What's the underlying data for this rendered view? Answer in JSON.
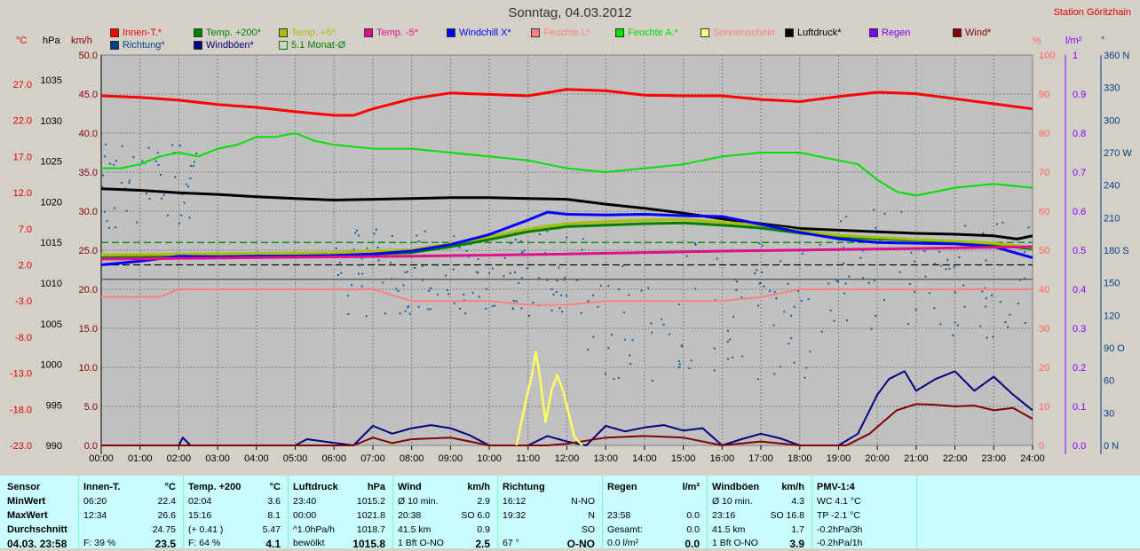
{
  "title": "Sonntag, 04.03.2012",
  "station": "Station Göritzhain",
  "legend_row1": [
    {
      "label": "Innen-T.*",
      "color": "#ff0000"
    },
    {
      "label": "Temp. +200*",
      "color": "#008000"
    },
    {
      "label": "Temp. +5*",
      "color": "#aabf00"
    },
    {
      "label": "Temp. -5*",
      "color": "#e0108a"
    },
    {
      "label": "Windchill X*",
      "color": "#0000ff"
    },
    {
      "label": "Feuchte I.*",
      "color": "#ff8080"
    },
    {
      "label": "Feuchte A.*",
      "color": "#00e000"
    },
    {
      "label": "Sonnenschein",
      "color": "#ffff80"
    },
    {
      "label": "Luftdruck*",
      "color": "#000000"
    },
    {
      "label": "Regen",
      "color": "#8000ff"
    },
    {
      "label": "Wind*",
      "color": "#800000"
    }
  ],
  "legend_row2": [
    {
      "label": "Richtung*",
      "color": "#004080"
    },
    {
      "label": "Windböen*",
      "color": "#000080"
    },
    {
      "label": "5.1 Monat-Ø",
      "color": "#008000"
    }
  ],
  "axis_units": {
    "temp": "°C",
    "press": "hPa",
    "wind": "km/h",
    "hum": "%",
    "rain": "l/m²",
    "dir": "°"
  },
  "chart_data": {
    "type": "line",
    "x_ticks": [
      "00:00",
      "01:00",
      "02:00",
      "03:00",
      "04:00",
      "05:00",
      "06:00",
      "07:00",
      "08:00",
      "09:00",
      "10:00",
      "11:00",
      "12:00",
      "13:00",
      "14:00",
      "15:00",
      "16:00",
      "17:00",
      "18:00",
      "19:00",
      "20:00",
      "21:00",
      "22:00",
      "23:00",
      "24:00"
    ],
    "temp_ticks": [
      "27.0",
      "22.0",
      "17.0",
      "12.0",
      "7.0",
      "2.0",
      "-3.0",
      "-8.0",
      "-13.0",
      "-18.0",
      "-23.0"
    ],
    "press_ticks": [
      "1035",
      "1030",
      "1025",
      "1020",
      "1015",
      "1010",
      "1005",
      "1000",
      "995",
      "990"
    ],
    "wind_ticks": [
      "50.0",
      "45.0",
      "40.0",
      "35.0",
      "30.0",
      "25.0",
      "20.0",
      "15.0",
      "10.0",
      "5.0",
      "0.0"
    ],
    "hum_ticks": [
      "100",
      "90",
      "80",
      "70",
      "60",
      "50",
      "40",
      "30",
      "20",
      "10",
      "0"
    ],
    "rain_ticks": [
      "1",
      "0.9",
      "0.8",
      "0.7",
      "0.6",
      "0.5",
      "0.4",
      "0.3",
      "0.2",
      "0.1",
      "0.0"
    ],
    "dir_ticks": [
      "360 N",
      "330",
      "300",
      "270 W",
      "240",
      "210",
      "180 S",
      "150",
      "120",
      "90 O",
      "60",
      "30",
      "0 N"
    ],
    "temp_range": [
      -23,
      27
    ],
    "press_range": [
      990,
      1035
    ],
    "wind_range": [
      0,
      50
    ],
    "series": [
      {
        "name": "Innen-T.*",
        "axis": "temp",
        "color": "#ff0000",
        "width": 3,
        "x": [
          0,
          1,
          2,
          3,
          4,
          5,
          6,
          6.5,
          7,
          8,
          9,
          10,
          11,
          12,
          13,
          14,
          15,
          16,
          17,
          18,
          19,
          20,
          21,
          22,
          23,
          24
        ],
        "y": [
          25.4,
          25.2,
          24.8,
          24.2,
          23.8,
          23.2,
          22.7,
          22.7,
          23.6,
          25.0,
          25.8,
          25.6,
          25.4,
          26.3,
          26.1,
          25.5,
          25.4,
          25.4,
          24.9,
          24.6,
          25.3,
          25.9,
          25.7,
          25.0,
          24.3,
          23.6
        ]
      },
      {
        "name": "Feuchte A.*",
        "axis": "hum",
        "color": "#00e000",
        "width": 2,
        "x": [
          0,
          0.5,
          1,
          1.5,
          2,
          2.5,
          3,
          3.5,
          4,
          4.5,
          5,
          5.5,
          6,
          7,
          8,
          9,
          10,
          11,
          12,
          13,
          14,
          15,
          16,
          17,
          18,
          19,
          19.5,
          20,
          20.5,
          21,
          22,
          23,
          24
        ],
        "y": [
          71,
          71,
          72,
          74,
          75,
          74,
          76,
          77,
          79,
          79,
          80,
          78,
          77,
          76,
          76,
          75,
          74,
          73,
          71,
          70,
          71,
          72,
          74,
          75,
          75,
          73,
          72,
          68,
          65,
          64,
          66,
          67,
          66
        ]
      },
      {
        "name": "Luftdruck*",
        "axis": "press",
        "color": "#000000",
        "width": 3,
        "x": [
          0,
          1,
          2,
          3,
          4,
          5,
          6,
          7,
          8,
          9,
          10,
          11,
          12,
          13,
          14,
          15,
          16,
          17,
          18,
          19,
          20,
          21,
          22,
          23,
          23.6,
          24
        ],
        "y": [
          1021.6,
          1021.4,
          1021.1,
          1020.9,
          1020.6,
          1020.4,
          1020.2,
          1020.3,
          1020.4,
          1020.5,
          1020.5,
          1020.4,
          1020.3,
          1019.7,
          1019.2,
          1018.6,
          1017.9,
          1017.3,
          1016.7,
          1016.5,
          1016.3,
          1016.1,
          1016.0,
          1015.8,
          1015.4,
          1015.8
        ]
      },
      {
        "name": "Temp. +200*",
        "axis": "temp",
        "color": "#008000",
        "width": 3,
        "x": [
          0,
          2,
          4,
          6,
          8,
          9,
          10,
          11,
          12,
          13,
          14,
          15,
          16,
          17,
          18,
          19,
          20,
          21,
          22,
          23,
          24
        ],
        "y": [
          3.0,
          3.1,
          3.2,
          3.3,
          3.7,
          4.5,
          5.5,
          6.6,
          7.3,
          7.5,
          7.7,
          7.8,
          7.5,
          7.1,
          6.4,
          5.9,
          5.6,
          5.4,
          5.2,
          4.8,
          4.2
        ]
      },
      {
        "name": "Temp. +5*",
        "axis": "temp",
        "color": "#aabf00",
        "width": 3,
        "x": [
          0,
          2,
          4,
          6,
          8,
          9,
          10,
          11,
          12,
          13,
          14,
          15,
          16,
          17,
          18,
          19,
          20,
          21,
          22,
          23,
          24
        ],
        "y": [
          3.4,
          3.5,
          3.6,
          3.7,
          4.1,
          4.9,
          5.9,
          7.0,
          7.7,
          8.0,
          8.2,
          8.3,
          7.9,
          7.5,
          6.7,
          6.1,
          5.8,
          5.5,
          5.3,
          5.0,
          4.4
        ]
      },
      {
        "name": "Windchill X*",
        "axis": "temp",
        "color": "#0000ff",
        "width": 3,
        "x": [
          0,
          1,
          2,
          3,
          4,
          5,
          6,
          7,
          8,
          9,
          10,
          11,
          11.5,
          12,
          13,
          14,
          15,
          16,
          17,
          18,
          19,
          20,
          21,
          22,
          23,
          24
        ],
        "y": [
          2.0,
          2.5,
          3.2,
          3.1,
          3.2,
          3.2,
          3.3,
          3.5,
          3.9,
          4.8,
          6.2,
          8.2,
          9.3,
          9.0,
          8.9,
          9.0,
          8.8,
          8.7,
          7.6,
          6.5,
          5.6,
          5.1,
          5.0,
          4.9,
          4.5,
          3.0
        ]
      },
      {
        "name": "Temp. -5*",
        "axis": "temp",
        "color": "#e0108a",
        "width": 3,
        "x": [
          0,
          4,
          8,
          12,
          16,
          20,
          24
        ],
        "y": [
          2.8,
          3.0,
          3.2,
          3.5,
          3.9,
          4.2,
          4.5
        ]
      },
      {
        "name": "Feuchte I.*",
        "axis": "hum",
        "color": "#ff8080",
        "width": 2,
        "x": [
          0,
          1.5,
          2,
          3,
          4,
          5,
          6,
          7,
          8,
          9,
          10,
          11,
          12,
          13,
          14,
          15,
          16,
          17,
          18,
          19,
          20,
          21,
          22,
          23,
          24
        ],
        "y": [
          38,
          38,
          40,
          40,
          40,
          40,
          40,
          40,
          37,
          37,
          37,
          36,
          36,
          37,
          37,
          37,
          37,
          38,
          40,
          40,
          40,
          40,
          40,
          40,
          40
        ]
      },
      {
        "name": "Windböen*",
        "axis": "wind",
        "color": "#000080",
        "width": 2,
        "x": [
          0,
          2,
          2.1,
          2.3,
          5,
          5.3,
          6.5,
          7,
          7.5,
          8,
          8.5,
          9,
          9.5,
          10,
          11,
          11.5,
          12,
          12.5,
          13,
          13.5,
          14,
          14.5,
          15,
          15.5,
          16,
          16.5,
          17,
          17.5,
          18,
          19,
          19.5,
          20,
          20.3,
          20.7,
          21,
          21.5,
          22,
          22.5,
          23,
          23.5,
          24
        ],
        "y": [
          0,
          0,
          1,
          0,
          0,
          0.8,
          0,
          2.5,
          1.5,
          2.2,
          2.6,
          2.2,
          1.3,
          0,
          0,
          1.2,
          0.5,
          0,
          2.5,
          1.8,
          2.3,
          2.6,
          1.9,
          2.2,
          0,
          0.8,
          1.5,
          0.9,
          0,
          0,
          1.5,
          6.5,
          8.5,
          9.5,
          7,
          8.5,
          9.5,
          7,
          8.8,
          6.5,
          4.5
        ]
      },
      {
        "name": "Wind*",
        "axis": "wind",
        "color": "#800000",
        "width": 2,
        "x": [
          0,
          6.5,
          7,
          7.5,
          8,
          9,
          10,
          11.5,
          12,
          13,
          14,
          15,
          16,
          17,
          18,
          19.2,
          19.8,
          20.5,
          21,
          21.5,
          22,
          22.5,
          23,
          23.5,
          24
        ],
        "y": [
          0,
          0,
          1,
          0.3,
          0.8,
          1.0,
          0,
          0,
          0.2,
          1.0,
          1.2,
          1.0,
          0,
          0.5,
          0,
          0,
          1.5,
          4.5,
          5.3,
          5.2,
          5.0,
          5.1,
          4.5,
          4.8,
          3.4
        ]
      },
      {
        "name": "Sonnenschein",
        "axis": "wind",
        "color": "#ffff60",
        "width": 2.5,
        "x": [
          10.7,
          11,
          11.1,
          11.2,
          11.3,
          11.45,
          11.6,
          11.75,
          11.9,
          12.05,
          12.2,
          12.4
        ],
        "y": [
          0,
          7,
          9,
          12,
          9,
          3,
          7,
          9,
          7,
          4,
          1,
          0
        ]
      }
    ],
    "ref_lines": [
      {
        "axis": "temp",
        "y": 5.1,
        "color": "#008000",
        "dash": true
      },
      {
        "axis": "temp",
        "y": 2.0,
        "color": "#000000",
        "dash": true
      },
      {
        "axis": "temp",
        "y": 0,
        "color": "#606060",
        "dash": false
      }
    ]
  },
  "footer": {
    "row_labels": [
      "Sensor",
      "MinWert",
      "MaxWert",
      "Durchschnitt",
      "04.03. 23:58"
    ],
    "innen": {
      "head": "Innen-T.",
      "unit": "°C",
      "r1": [
        "06:20",
        "22.4"
      ],
      "r2": [
        "12:34",
        "26.6"
      ],
      "r3": [
        "",
        "24.75"
      ],
      "r4": [
        "F: 39 %",
        "23.5"
      ]
    },
    "temp": {
      "head": "Temp. +200",
      "unit": "°C",
      "r1": [
        "02:04",
        "3.6"
      ],
      "r2": [
        "15:16",
        "8.1"
      ],
      "r3": [
        "(+ 0.41 )",
        "5.47"
      ],
      "r4": [
        "F: 64 %",
        "4.1"
      ]
    },
    "press": {
      "head": "Luftdruck",
      "unit": "hPa",
      "r1": [
        "23:40",
        "1015.2"
      ],
      "r2": [
        "00:00",
        "1021.8"
      ],
      "r3": [
        "^1.0hPa/h",
        "1018.7"
      ],
      "r4": [
        "bewölkt",
        "1015.8"
      ]
    },
    "wind": {
      "head": "Wind",
      "unit": "km/h",
      "r1": [
        "Ø 10 min.",
        "2.9"
      ],
      "r2": [
        "20:38",
        "SO 6.0"
      ],
      "r3": [
        "41.5 km",
        "0.9"
      ],
      "r4": [
        "1 Bft O-NO",
        "2.5"
      ]
    },
    "dir": {
      "head": "Richtung",
      "r1": [
        "16:12",
        "N-NO"
      ],
      "r2": [
        "19:32",
        "N"
      ],
      "r3": [
        "",
        "SO"
      ],
      "r4": [
        "67 °",
        "O-NO"
      ]
    },
    "rain": {
      "head": "Regen",
      "unit": "l/m²",
      "r1": [
        "",
        ""
      ],
      "r2": [
        "23:58",
        "0.0"
      ],
      "r3": [
        "Gesamt:",
        "0.0"
      ],
      "r4": [
        "0.0 l/m²",
        "0.0"
      ]
    },
    "gust": {
      "head": "Windböen",
      "unit": "km/h",
      "r1": [
        "Ø 10 min.",
        "4.3"
      ],
      "r2": [
        "23:16",
        "SO 16.8"
      ],
      "r3": [
        "41.5 km",
        "1.7"
      ],
      "r4": [
        "1 Bft O-NO",
        "3.9"
      ]
    },
    "pmv": {
      "head": "PMV-1:4",
      "r1": "WC 4.1 °C",
      "r2": "TP -2.1 °C",
      "r3": "-0.2hPa/3h",
      "r4": "-0.2hPa/1h"
    }
  }
}
